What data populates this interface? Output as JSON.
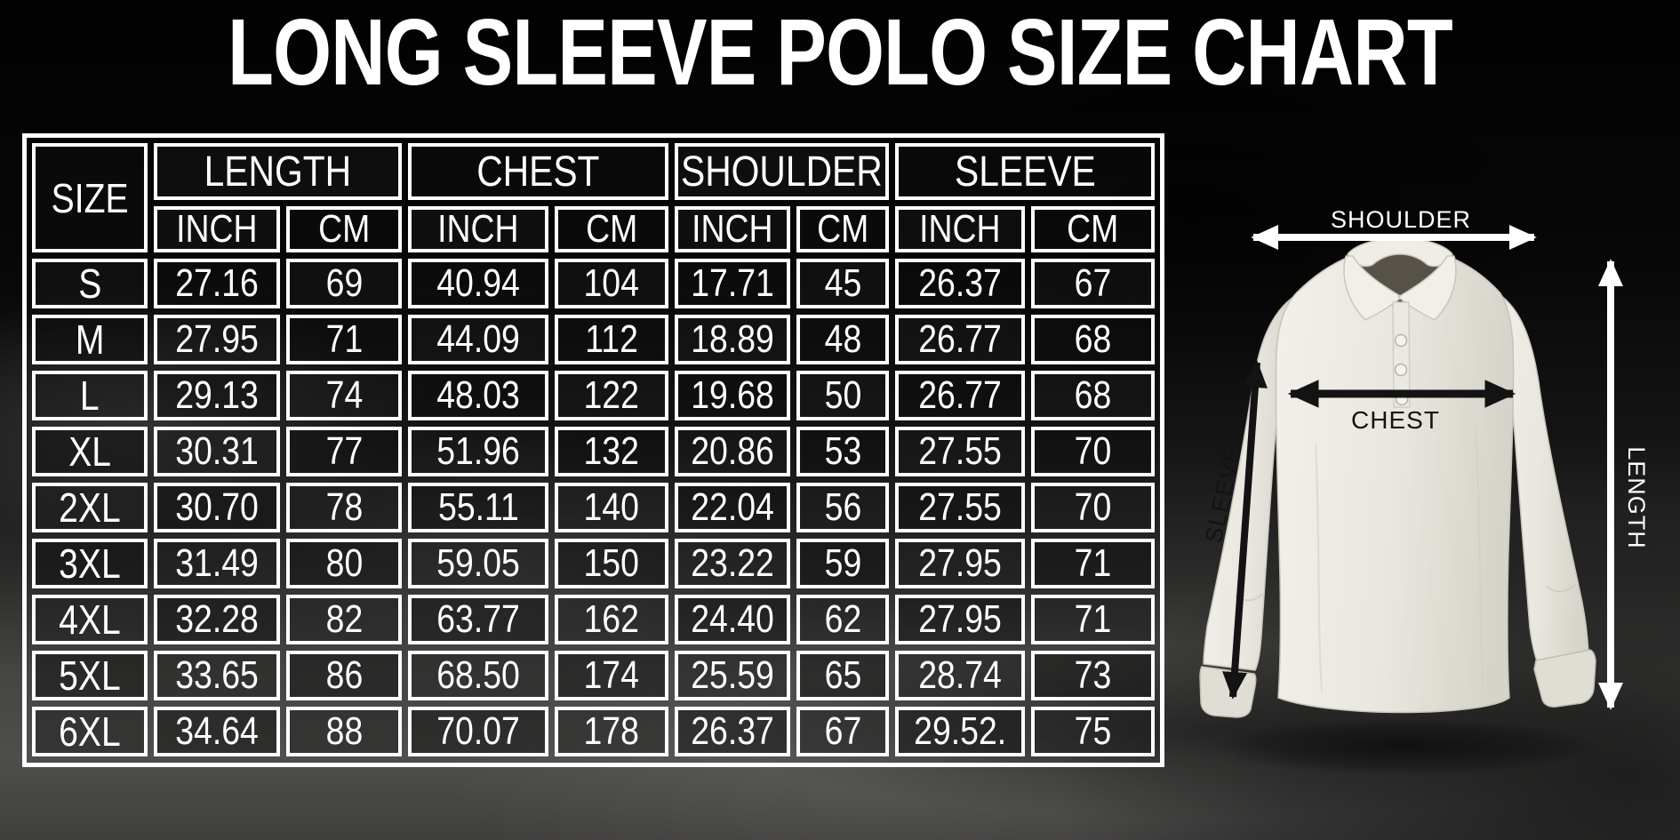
{
  "title": "LONG SLEEVE POLO SIZE CHART",
  "table": {
    "corner_label": "SIZE",
    "group_headers": [
      "LENGTH",
      "CHEST",
      "SHOULDER",
      "SLEEVE"
    ],
    "unit_inch": "INCH",
    "unit_cm": "CM"
  },
  "chart_data": {
    "type": "table",
    "title": "LONG SLEEVE POLO SIZE CHART",
    "columns": [
      "SIZE",
      "LENGTH INCH",
      "LENGTH CM",
      "CHEST INCH",
      "CHEST CM",
      "SHOULDER INCH",
      "SHOULDER CM",
      "SLEEVE INCH",
      "SLEEVE CM"
    ],
    "rows": [
      [
        "S",
        "27.16",
        "69",
        "40.94",
        "104",
        "17.71",
        "45",
        "26.37",
        "67"
      ],
      [
        "M",
        "27.95",
        "71",
        "44.09",
        "112",
        "18.89",
        "48",
        "26.77",
        "68"
      ],
      [
        "L",
        "29.13",
        "74",
        "48.03",
        "122",
        "19.68",
        "50",
        "26.77",
        "68"
      ],
      [
        "XL",
        "30.31",
        "77",
        "51.96",
        "132",
        "20.86",
        "53",
        "27.55",
        "70"
      ],
      [
        "2XL",
        "30.70",
        "78",
        "55.11",
        "140",
        "22.04",
        "56",
        "27.55",
        "70"
      ],
      [
        "3XL",
        "31.49",
        "80",
        "59.05",
        "150",
        "23.22",
        "59",
        "27.95",
        "71"
      ],
      [
        "4XL",
        "32.28",
        "82",
        "63.77",
        "162",
        "24.40",
        "62",
        "27.95",
        "71"
      ],
      [
        "5XL",
        "33.65",
        "86",
        "68.50",
        "174",
        "25.59",
        "65",
        "28.74",
        "73"
      ],
      [
        "6XL",
        "34.64",
        "88",
        "70.07",
        "178",
        "26.37",
        "67",
        "29.52.",
        "75"
      ]
    ]
  },
  "diagram": {
    "shoulder_label": "SHOULDER",
    "chest_label": "CHEST",
    "sleeve_label": "SLEEVE",
    "length_label": "LENGTH"
  },
  "colors": {
    "table_border": "#ffffff",
    "table_text": "#ffffff",
    "shirt": "#eae7e0",
    "dark_annotation": "#131313",
    "light_annotation": "#ffffff"
  }
}
